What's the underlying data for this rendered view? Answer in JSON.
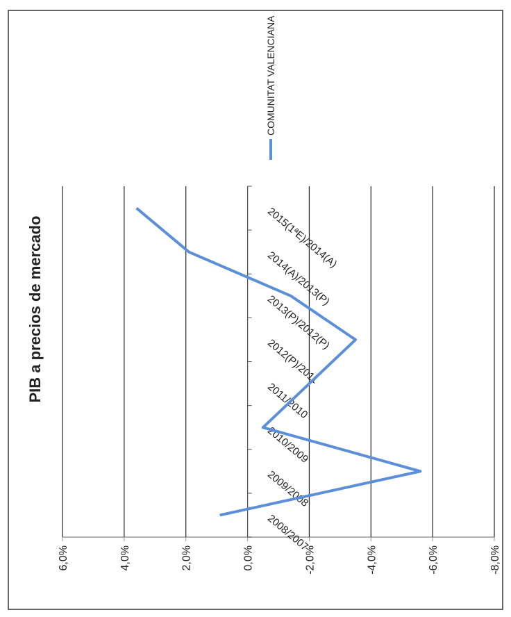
{
  "chart_data": {
    "type": "line",
    "title": "PIB a precios de mercado",
    "categories": [
      "2008/2007",
      "2009/2008",
      "2010/2009",
      "2011/2010",
      "2012(P)/2011",
      "2013(P)/2012(P)",
      "2014(A)/2013(P)",
      "2015(1ªE)/2014(A)"
    ],
    "series": [
      {
        "name": "COMUNITAT VALENCIANA",
        "color": "#5b8fd9",
        "values": [
          0.9,
          -5.6,
          -0.5,
          -2.0,
          -3.5,
          -1.4,
          1.9,
          3.6
        ]
      }
    ],
    "ylim": [
      6,
      -8
    ],
    "yticks": [
      {
        "value": 6,
        "label": "6,0%"
      },
      {
        "value": 4,
        "label": "4,0%"
      },
      {
        "value": 2,
        "label": "2,0%"
      },
      {
        "value": 0,
        "label": "0,0%"
      },
      {
        "value": -2,
        "label": "-2,0%"
      },
      {
        "value": -4,
        "label": "-4,0%"
      },
      {
        "value": -6,
        "label": "-6,0%"
      },
      {
        "value": -8,
        "label": "-8,0%"
      }
    ],
    "grid": true
  }
}
